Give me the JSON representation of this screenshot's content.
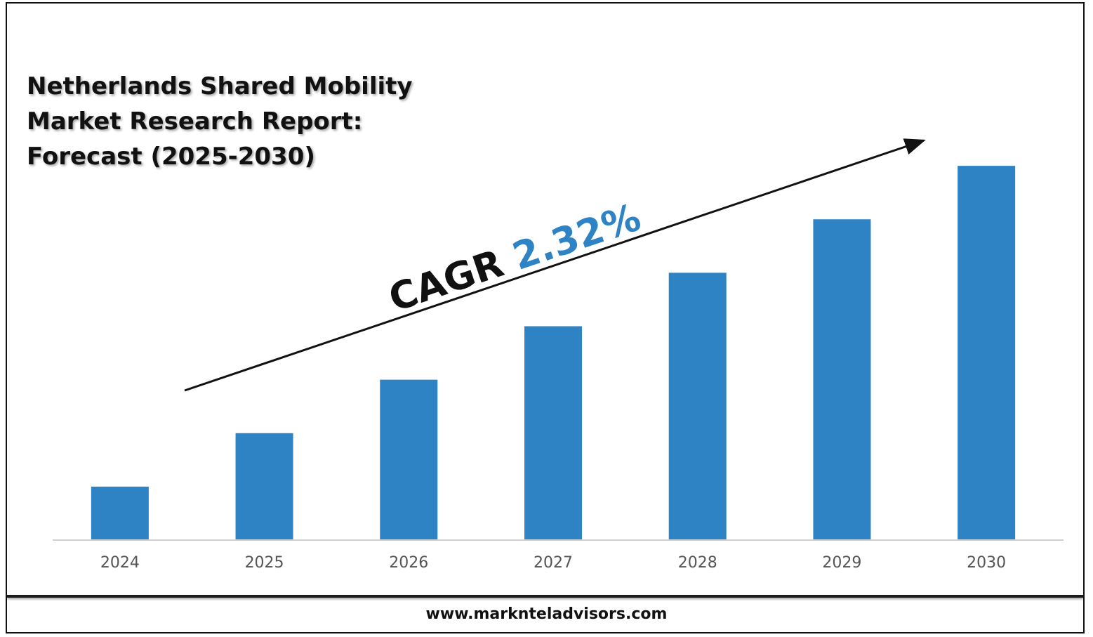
{
  "chart_data": {
    "type": "bar",
    "title": "Netherlands Shared Mobility\nMarket Research Report:\nForecast (2025-2030)",
    "categories": [
      "2024",
      "2025",
      "2026",
      "2027",
      "2028",
      "2029",
      "2030"
    ],
    "values": [
      1,
      2,
      3,
      4,
      5,
      6,
      7
    ],
    "ylim": [
      0,
      8
    ],
    "grid": false,
    "bar_color": "#2e83c4",
    "annotation": {
      "label": "CAGR",
      "value": "2.32%",
      "label_color": "#111111",
      "value_color": "#2e83c4"
    }
  },
  "footer": {
    "website": "www.marknteladvisors.com"
  }
}
